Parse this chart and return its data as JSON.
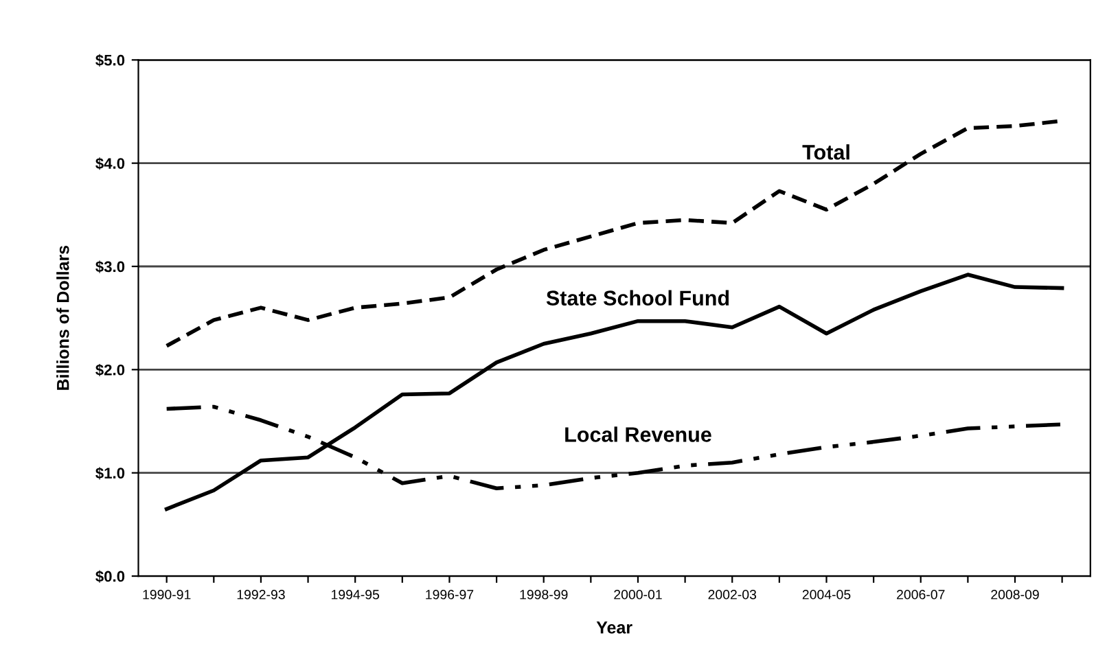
{
  "chart_data": {
    "type": "line",
    "xlabel": "Year",
    "ylabel": "Billions of Dollars",
    "categories": [
      "1990-91",
      null,
      "1992-93",
      null,
      "1994-95",
      null,
      "1996-97",
      null,
      "1998-99",
      null,
      "2000-01",
      null,
      "2002-03",
      null,
      "2004-05",
      null,
      "2006-07",
      null,
      "2008-09",
      null
    ],
    "series": [
      {
        "name": "Total",
        "color": "#000000",
        "line_style": "dashed",
        "values": [
          2.23,
          2.48,
          2.6,
          2.48,
          2.6,
          2.64,
          2.7,
          2.97,
          3.16,
          3.29,
          3.42,
          3.45,
          3.42,
          3.73,
          3.55,
          3.8,
          4.09,
          4.34,
          4.36,
          4.41
        ]
      },
      {
        "name": "State School Fund",
        "color": "#000000",
        "line_style": "solid",
        "values": [
          0.65,
          0.83,
          1.12,
          1.15,
          1.44,
          1.76,
          1.77,
          2.07,
          2.25,
          2.35,
          2.47,
          2.47,
          2.41,
          2.61,
          2.35,
          2.58,
          2.76,
          2.92,
          2.8,
          2.79
        ]
      },
      {
        "name": "Local Revenue",
        "color": "#000000",
        "line_style": "dotted",
        "values": [
          1.62,
          1.64,
          1.51,
          1.35,
          1.15,
          0.9,
          0.97,
          0.85,
          0.88,
          0.95,
          1.0,
          1.07,
          1.1,
          1.18,
          1.25,
          1.3,
          1.36,
          1.43,
          1.45,
          1.47
        ]
      }
    ],
    "ylim": [
      0,
      5
    ],
    "yticks": [
      {
        "value": 0,
        "label": "$0.0"
      },
      {
        "value": 1,
        "label": "$1.0"
      },
      {
        "value": 2,
        "label": "$2.0"
      },
      {
        "value": 3,
        "label": "$3.0"
      },
      {
        "value": 4,
        "label": "$4.0"
      },
      {
        "value": 5,
        "label": "$5.0"
      }
    ],
    "grid": "y",
    "legend": false,
    "marker": "none"
  }
}
